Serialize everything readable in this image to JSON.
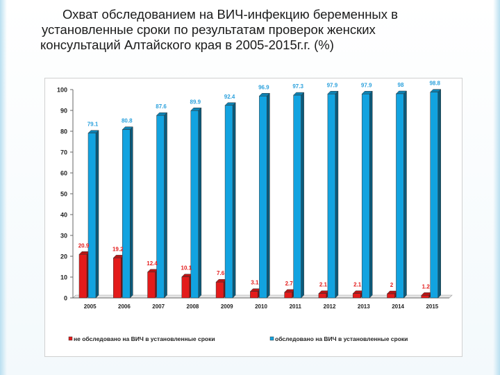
{
  "title_lines": [
    "Охват обследованием на ВИЧ-инфекцию беременных в",
    "установленные сроки по результатам проверок женских",
    "консультаций Алтайского края в  2005-2015г.г.  (%)"
  ],
  "colors": {
    "red": "#e31b1b",
    "blue": "#12a3e0",
    "red_label": "#e31b1b",
    "blue_label": "#2aa0dc"
  },
  "chart_data": {
    "type": "bar",
    "title": "Охват обследованием на ВИЧ-инфекцию беременных в установленные сроки по результатам проверок женских консультаций Алтайского края в  2005-2015г.г.  (%)",
    "categories": [
      "2005",
      "2006",
      "2007",
      "2008",
      "2009",
      "2010",
      "2011",
      "2012",
      "2013",
      "2014",
      "2015"
    ],
    "series": [
      {
        "name": "не обследовано на ВИЧ в установленные сроки",
        "values": [
          20.9,
          19.2,
          12.4,
          10.1,
          7.6,
          3.1,
          2.7,
          2.1,
          2.1,
          2,
          1.2
        ],
        "labels": [
          "20.9",
          "19.2",
          "12.4",
          "10.1",
          "7.6",
          "3.1",
          "2.7",
          "2.1",
          "2.1",
          "2",
          "1.2"
        ]
      },
      {
        "name": "обследовано на ВИЧ в установленные сроки",
        "values": [
          79.1,
          80.8,
          87.6,
          89.9,
          92.4,
          96.9,
          97.3,
          97.9,
          97.9,
          98,
          98.8
        ],
        "labels": [
          "79.1",
          "80.8",
          "87.6",
          "89.9",
          "92.4",
          "96.9",
          "97.3",
          "97.9",
          "97.9",
          "98",
          "98.8"
        ]
      }
    ],
    "ylim": [
      0,
      100
    ],
    "yticks": [
      "0",
      "10",
      "20",
      "30",
      "40",
      "50",
      "60",
      "70",
      "80",
      "90",
      "100"
    ],
    "grid": false,
    "legend_position": "bottom"
  }
}
